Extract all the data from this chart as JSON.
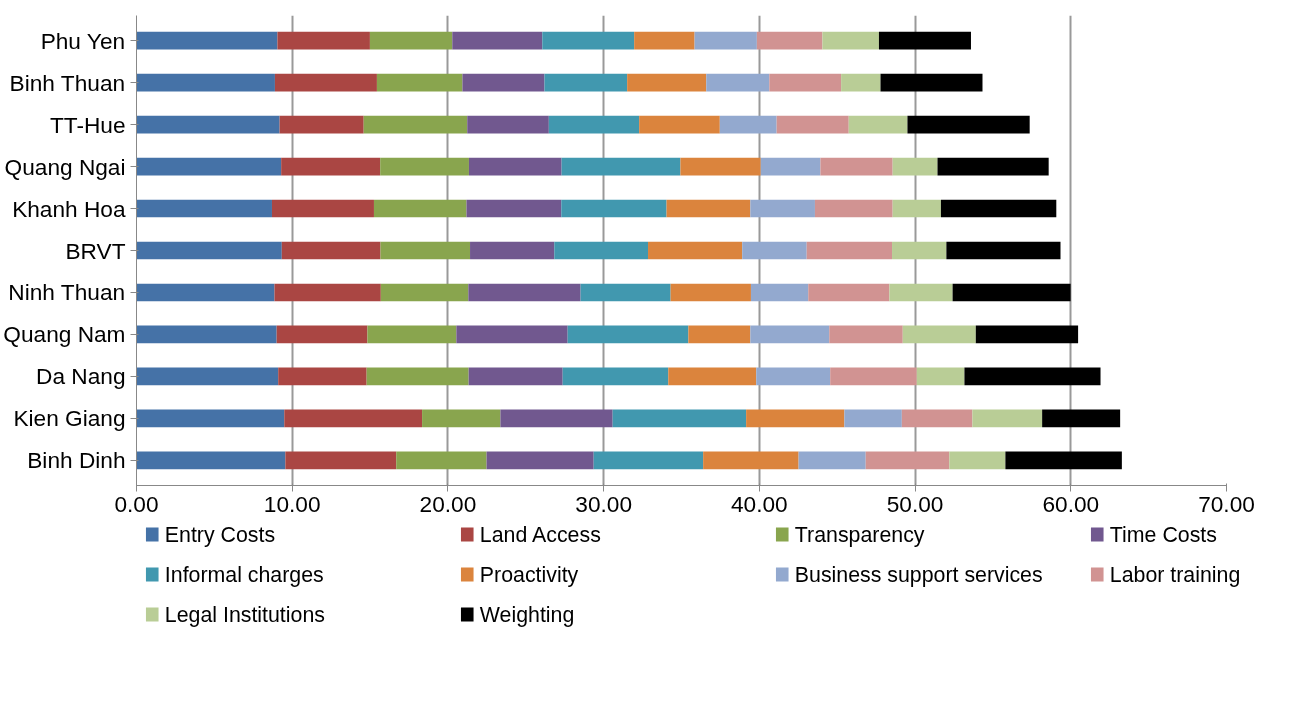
{
  "chart_data": {
    "type": "bar",
    "orientation": "horizontal",
    "stacked": true,
    "categories": [
      "Phu Yen",
      "Binh Thuan",
      "TT-Hue",
      "Quang Ngai",
      "Khanh Hoa",
      "BRVT",
      "Ninh Thuan",
      "Quang Nam",
      "Da Nang",
      "Kien Giang",
      "Binh Dinh"
    ],
    "series": [
      {
        "name": "Entry Costs",
        "color": "#4572a7",
        "values": [
          9.05,
          8.89,
          9.19,
          9.29,
          8.7,
          9.33,
          8.86,
          9.0,
          9.1,
          9.49,
          9.56
        ]
      },
      {
        "name": "Land Access",
        "color": "#aa4643",
        "values": [
          5.94,
          6.55,
          5.4,
          6.36,
          6.55,
          6.34,
          6.83,
          5.83,
          5.68,
          8.85,
          7.12
        ]
      },
      {
        "name": "Transparency",
        "color": "#89a54e",
        "values": [
          5.29,
          5.49,
          6.65,
          5.7,
          5.94,
          5.75,
          5.62,
          5.71,
          6.55,
          5.03,
          5.8
        ]
      },
      {
        "name": "Time Costs",
        "color": "#71588f",
        "values": [
          5.78,
          5.27,
          5.24,
          5.95,
          6.09,
          5.41,
          7.21,
          7.15,
          6.04,
          7.21,
          6.88
        ]
      },
      {
        "name": "Informal charges",
        "color": "#4198af",
        "values": [
          5.9,
          5.31,
          5.8,
          7.63,
          6.76,
          6.02,
          5.78,
          7.75,
          6.78,
          8.57,
          7.03
        ]
      },
      {
        "name": "Proactivity",
        "color": "#db843d",
        "values": [
          3.88,
          5.08,
          5.18,
          5.16,
          5.38,
          6.05,
          5.16,
          3.98,
          5.65,
          6.31,
          6.13
        ]
      },
      {
        "name": "Business support services",
        "color": "#93a9cf",
        "values": [
          4.0,
          4.05,
          3.65,
          3.83,
          4.15,
          4.14,
          3.68,
          5.07,
          4.75,
          3.69,
          4.31
        ]
      },
      {
        "name": "Labor training",
        "color": "#d19392",
        "values": [
          4.21,
          4.61,
          4.63,
          4.64,
          4.99,
          5.48,
          5.21,
          4.72,
          5.56,
          4.53,
          5.37
        ]
      },
      {
        "name": "Legal Institutions",
        "color": "#b9cd96",
        "values": [
          3.63,
          2.53,
          3.77,
          2.88,
          3.1,
          3.49,
          4.06,
          4.69,
          3.06,
          4.48,
          3.6
        ]
      },
      {
        "name": "Weighting",
        "color": "#000000",
        "values": [
          5.91,
          6.55,
          7.85,
          7.14,
          7.41,
          7.33,
          7.58,
          6.57,
          8.74,
          5.01,
          7.48
        ]
      }
    ],
    "xlim": [
      0,
      70
    ],
    "xticks": [
      {
        "value": 0,
        "label": "0.00"
      },
      {
        "value": 10,
        "label": "10.00"
      },
      {
        "value": 20,
        "label": "20.00"
      },
      {
        "value": 30,
        "label": "30.00"
      },
      {
        "value": 40,
        "label": "40.00"
      },
      {
        "value": 50,
        "label": "50.00"
      },
      {
        "value": 60,
        "label": "60.00"
      },
      {
        "value": 70,
        "label": "70.00"
      }
    ],
    "grid": "x",
    "legend": "bottom"
  }
}
